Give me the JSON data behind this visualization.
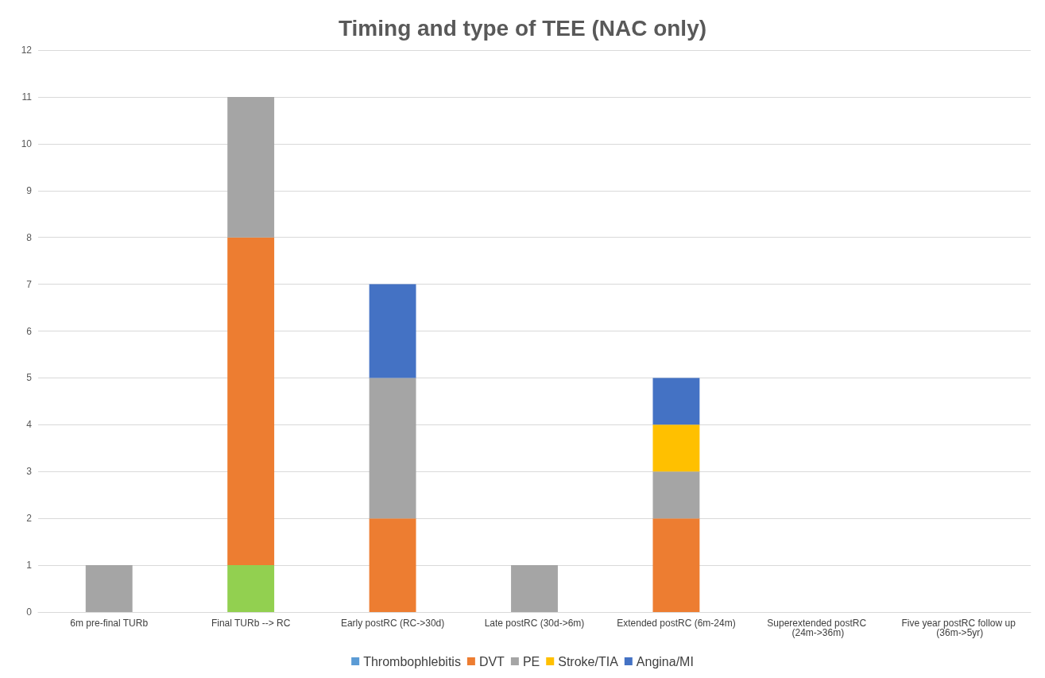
{
  "chart_data": {
    "type": "bar",
    "title": "Timing and type of TEE (NAC only)",
    "categories": [
      "6m pre-final TURb",
      "Final TURb --> RC",
      "Early postRC (RC->30d)",
      "Late postRC (30d->6m)",
      "Extended postRC (6m-24m)",
      "Superextended postRC (24m->36m)",
      "Five year postRC follow up (36m->5yr)"
    ],
    "series": [
      {
        "color": "#92d050",
        "values": [
          null,
          1,
          null,
          null,
          null,
          null,
          null
        ]
      },
      {
        "name": "Thrombophlebitis",
        "color": "#5b9bd5",
        "values": [
          null,
          null,
          null,
          null,
          null,
          null,
          null
        ]
      },
      {
        "name": "DVT",
        "color": "#ed7d31",
        "values": [
          null,
          7,
          2,
          null,
          2,
          null,
          null
        ]
      },
      {
        "name": "PE",
        "color": "#a5a5a5",
        "values": [
          1,
          3,
          3,
          1,
          1,
          null,
          null
        ]
      },
      {
        "name": "Stroke/TIA",
        "color": "#ffc000",
        "values": [
          null,
          null,
          null,
          null,
          1,
          null,
          null
        ]
      },
      {
        "name": "Angina/MI",
        "color": "#4472c4",
        "values": [
          null,
          null,
          2,
          null,
          1,
          null,
          null
        ]
      }
    ],
    "stacked": true,
    "ylim": [
      0,
      12
    ],
    "yticks": [
      0,
      1,
      2,
      3,
      4,
      5,
      6,
      7,
      8,
      9,
      10,
      11,
      12
    ],
    "grid": "y",
    "legend": "bottom"
  }
}
